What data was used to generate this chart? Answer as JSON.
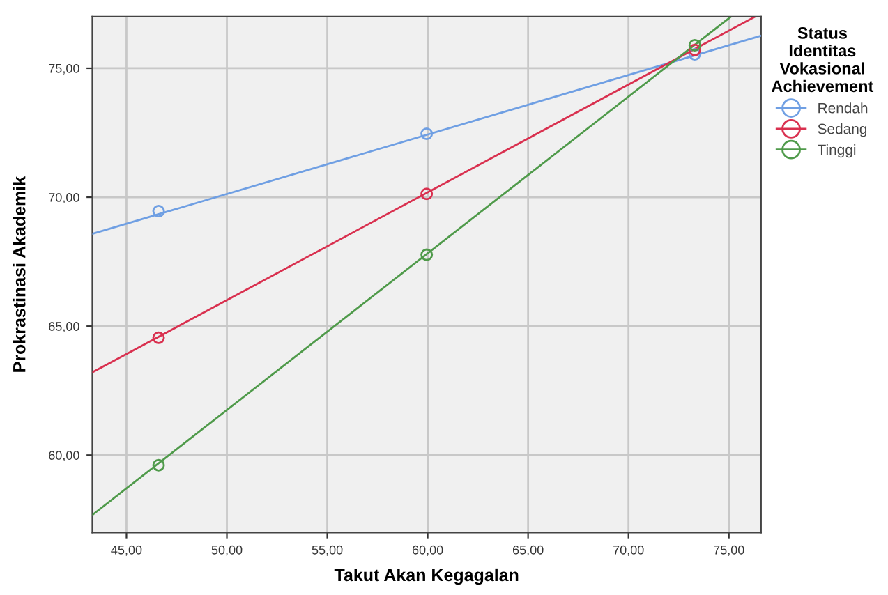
{
  "chart_data": {
    "type": "scatter",
    "xlabel": "Takut Akan Kegagalan",
    "ylabel": "Prokrastinasi Akademik",
    "legend_title": "Status\nIdentitas\nVokasional\nAchievement",
    "xlim": [
      43.3,
      76.6
    ],
    "ylim": [
      57.0,
      77.0
    ],
    "xticks": [
      {
        "value": 45,
        "label": "45,00"
      },
      {
        "value": 50,
        "label": "50,00"
      },
      {
        "value": 55,
        "label": "55,00"
      },
      {
        "value": 60,
        "label": "60,00"
      },
      {
        "value": 65,
        "label": "65,00"
      },
      {
        "value": 70,
        "label": "70,00"
      },
      {
        "value": 75,
        "label": "75,00"
      }
    ],
    "yticks": [
      {
        "value": 60,
        "label": "60,00"
      },
      {
        "value": 65,
        "label": "65,00"
      },
      {
        "value": 70,
        "label": "70,00"
      },
      {
        "value": 75,
        "label": "75,00"
      }
    ],
    "grid": true,
    "legend": "right",
    "marker": "circle",
    "series": [
      {
        "name": "Rendah",
        "color": "#6f9fe3",
        "x": [
          46.6,
          59.95,
          73.3
        ],
        "values": [
          69.46,
          72.46,
          75.54
        ]
      },
      {
        "name": "Sedang",
        "color": "#d9304f",
        "x": [
          46.6,
          59.95,
          73.3
        ],
        "values": [
          64.55,
          70.13,
          75.71
        ]
      },
      {
        "name": "Tinggi",
        "color": "#4f9a4a",
        "x": [
          46.6,
          59.95,
          73.3
        ],
        "values": [
          59.61,
          67.77,
          75.89
        ]
      },
      {
        "type": "line",
        "marker": "none",
        "color": "#6f9fe3",
        "x": [
          43.3,
          76.6
        ],
        "values": [
          68.58,
          76.26
        ]
      },
      {
        "type": "line",
        "marker": "none",
        "color": "#d9304f",
        "x": [
          43.3,
          76.3
        ],
        "values": [
          63.21,
          77.0
        ]
      },
      {
        "type": "line",
        "marker": "none",
        "color": "#4f9a4a",
        "x": [
          43.3,
          75.1
        ],
        "values": [
          57.68,
          77.0
        ]
      }
    ]
  }
}
